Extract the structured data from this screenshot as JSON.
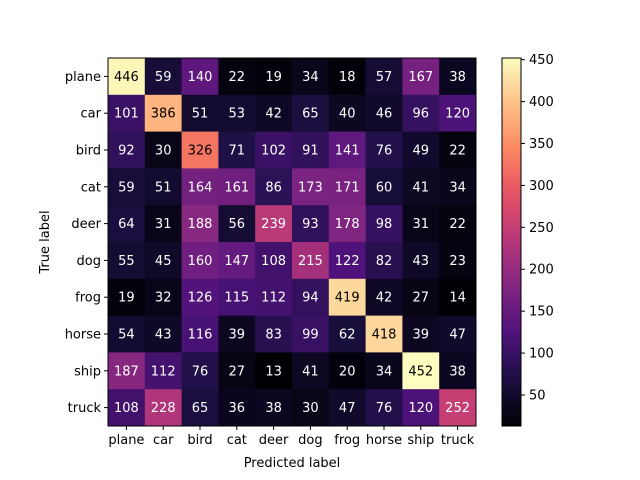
{
  "chart_data": {
    "type": "heatmap",
    "xlabel": "Predicted label",
    "ylabel": "True label",
    "x_categories": [
      "plane",
      "car",
      "bird",
      "cat",
      "deer",
      "dog",
      "frog",
      "horse",
      "ship",
      "truck"
    ],
    "y_categories": [
      "plane",
      "car",
      "bird",
      "cat",
      "deer",
      "dog",
      "frog",
      "horse",
      "ship",
      "truck"
    ],
    "values": [
      [
        446,
        59,
        140,
        22,
        19,
        34,
        18,
        57,
        167,
        38
      ],
      [
        101,
        386,
        51,
        53,
        42,
        65,
        40,
        46,
        96,
        120
      ],
      [
        92,
        30,
        326,
        71,
        102,
        91,
        141,
        76,
        49,
        22
      ],
      [
        59,
        51,
        164,
        161,
        86,
        173,
        171,
        60,
        41,
        34
      ],
      [
        64,
        31,
        188,
        56,
        239,
        93,
        178,
        98,
        31,
        22
      ],
      [
        55,
        45,
        160,
        147,
        108,
        215,
        122,
        82,
        43,
        23
      ],
      [
        19,
        32,
        126,
        115,
        112,
        94,
        419,
        42,
        27,
        14
      ],
      [
        54,
        43,
        116,
        39,
        83,
        99,
        62,
        418,
        39,
        47
      ],
      [
        187,
        112,
        76,
        27,
        13,
        41,
        20,
        34,
        452,
        38
      ],
      [
        108,
        228,
        65,
        36,
        38,
        30,
        47,
        76,
        120,
        252
      ]
    ],
    "colormap": "magma",
    "colorbar": {
      "range": [
        13,
        452
      ],
      "ticks": [
        50,
        100,
        150,
        200,
        250,
        300,
        350,
        400,
        450
      ]
    }
  }
}
